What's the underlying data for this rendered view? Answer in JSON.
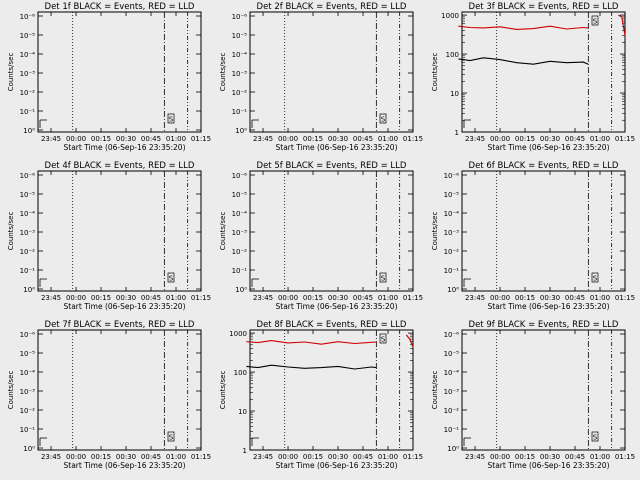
{
  "figure": {
    "background": "#ececec",
    "axis_color": "#000000",
    "events_color": "#000000",
    "lld_color": "#cc0000"
  },
  "chart_data": [
    {
      "type": "line",
      "title": "Det 1f BLACK = Events, RED = LLD",
      "xlabel": "Start Time (06-Sep-16 23:35:20)",
      "ylabel": "Counts/sec",
      "x_ticks": [
        "23:45",
        "00:00",
        "00:15",
        "00:30",
        "00:45",
        "01:00",
        "01:15"
      ],
      "yscale": "log",
      "y_ticks": [
        "10⁰",
        "10⁻¹",
        "10⁻²",
        "10⁻³",
        "10⁻⁴",
        "10⁻⁵",
        "10⁻⁶"
      ],
      "series": [],
      "annotation": "S"
    },
    {
      "type": "line",
      "title": "Det 2f BLACK = Events, RED = LLD",
      "xlabel": "Start Time (06-Sep-16 23:35:20)",
      "ylabel": "Counts/sec",
      "x_ticks": [
        "23:45",
        "00:00",
        "00:15",
        "00:30",
        "00:45",
        "01:00",
        "01:15"
      ],
      "yscale": "log",
      "y_ticks": [
        "10⁰",
        "10⁻¹",
        "10⁻²",
        "10⁻³",
        "10⁻⁴",
        "10⁻⁵",
        "10⁻⁶"
      ],
      "series": [],
      "annotation": "S"
    },
    {
      "type": "line",
      "title": "Det 3f BLACK = Events, RED = LLD",
      "xlabel": "Start Time (06-Sep-16 23:35:20)",
      "ylabel": "Counts/sec",
      "x_ticks": [
        "23:45",
        "00:00",
        "00:15",
        "00:30",
        "00:45",
        "01:00",
        "01:15"
      ],
      "yscale": "log",
      "y_ticks": [
        "1",
        "10",
        "100",
        "1000"
      ],
      "series": [
        {
          "color": "#cc0000",
          "x": [
            "23:35",
            "23:42",
            "23:50",
            "00:00",
            "00:10",
            "00:20",
            "00:30",
            "00:40",
            "00:50",
            "00:53"
          ],
          "y": [
            520,
            480,
            470,
            500,
            430,
            450,
            520,
            440,
            480,
            470
          ]
        },
        {
          "color": "#000000",
          "x": [
            "23:35",
            "23:42",
            "23:50",
            "00:00",
            "00:10",
            "00:20",
            "00:30",
            "00:40",
            "00:50",
            "00:53"
          ],
          "y": [
            75,
            68,
            80,
            72,
            60,
            55,
            65,
            60,
            62,
            55
          ]
        },
        {
          "color": "#cc0000",
          "x": [
            "01:11",
            "01:13",
            "01:15"
          ],
          "y": [
            1000,
            900,
            300
          ]
        }
      ],
      "annotation": "S"
    },
    {
      "type": "line",
      "title": "Det 4f BLACK = Events, RED = LLD",
      "xlabel": "Start Time (06-Sep-16 23:35:20)",
      "ylabel": "Counts/sec",
      "x_ticks": [
        "23:45",
        "00:00",
        "00:15",
        "00:30",
        "00:45",
        "01:00",
        "01:15"
      ],
      "yscale": "log",
      "y_ticks": [
        "10⁰",
        "10⁻¹",
        "10⁻²",
        "10⁻³",
        "10⁻⁴",
        "10⁻⁵",
        "10⁻⁶"
      ],
      "series": [],
      "annotation": "S"
    },
    {
      "type": "line",
      "title": "Det 5f BLACK = Events, RED = LLD",
      "xlabel": "Start Time (06-Sep-16 23:35:20)",
      "ylabel": "Counts/sec",
      "x_ticks": [
        "23:45",
        "00:00",
        "00:15",
        "00:30",
        "00:45",
        "01:00",
        "01:15"
      ],
      "yscale": "log",
      "y_ticks": [
        "10⁰",
        "10⁻¹",
        "10⁻²",
        "10⁻³",
        "10⁻⁴",
        "10⁻⁵",
        "10⁻⁶"
      ],
      "series": [],
      "annotation": "S"
    },
    {
      "type": "line",
      "title": "Det 6f BLACK = Events, RED = LLD",
      "xlabel": "Start Time (06-Sep-16 23:35:20)",
      "ylabel": "Counts/sec",
      "x_ticks": [
        "23:45",
        "00:00",
        "00:15",
        "00:30",
        "00:45",
        "01:00",
        "01:15"
      ],
      "yscale": "log",
      "y_ticks": [
        "10⁰",
        "10⁻¹",
        "10⁻²",
        "10⁻³",
        "10⁻⁴",
        "10⁻⁵",
        "10⁻⁶"
      ],
      "series": [],
      "annotation": "S"
    },
    {
      "type": "line",
      "title": "Det 7f BLACK = Events, RED = LLD",
      "xlabel": "Start Time (06-Sep-16 23:35:20)",
      "ylabel": "Counts/sec",
      "x_ticks": [
        "23:45",
        "00:00",
        "00:15",
        "00:30",
        "00:45",
        "01:00",
        "01:15"
      ],
      "yscale": "log",
      "y_ticks": [
        "10⁰",
        "10⁻¹",
        "10⁻²",
        "10⁻³",
        "10⁻⁴",
        "10⁻⁵",
        "10⁻⁶"
      ],
      "series": [],
      "annotation": "S"
    },
    {
      "type": "line",
      "title": "Det 8f BLACK = Events, RED = LLD",
      "xlabel": "Start Time (06-Sep-16 23:35:20)",
      "ylabel": "Counts/sec",
      "x_ticks": [
        "23:45",
        "00:00",
        "00:15",
        "00:30",
        "00:45",
        "01:00",
        "01:15"
      ],
      "yscale": "log",
      "y_ticks": [
        "1",
        "10",
        "100",
        "1000"
      ],
      "series": [
        {
          "color": "#cc0000",
          "x": [
            "23:35",
            "23:42",
            "23:50",
            "00:00",
            "00:10",
            "00:20",
            "00:30",
            "00:40",
            "00:50",
            "00:53"
          ],
          "y": [
            600,
            570,
            640,
            560,
            590,
            520,
            600,
            540,
            580,
            590
          ]
        },
        {
          "color": "#000000",
          "x": [
            "23:35",
            "23:42",
            "23:50",
            "00:00",
            "00:10",
            "00:20",
            "00:30",
            "00:40",
            "00:50",
            "00:53"
          ],
          "y": [
            140,
            130,
            150,
            135,
            125,
            130,
            140,
            120,
            135,
            130
          ]
        },
        {
          "color": "#cc0000",
          "x": [
            "01:11",
            "01:13",
            "01:15"
          ],
          "y": [
            900,
            700,
            450
          ]
        }
      ],
      "annotation": "S"
    },
    {
      "type": "line",
      "title": "Det 9f BLACK = Events, RED = LLD",
      "xlabel": "Start Time (06-Sep-16 23:35:20)",
      "ylabel": "Counts/sec",
      "x_ticks": [
        "23:45",
        "00:00",
        "00:15",
        "00:30",
        "00:45",
        "01:00",
        "01:15"
      ],
      "yscale": "log",
      "y_ticks": [
        "10⁰",
        "10⁻¹",
        "10⁻²",
        "10⁻³",
        "10⁻⁴",
        "10⁻⁵",
        "10⁻⁶"
      ],
      "series": [],
      "annotation": "S"
    }
  ]
}
